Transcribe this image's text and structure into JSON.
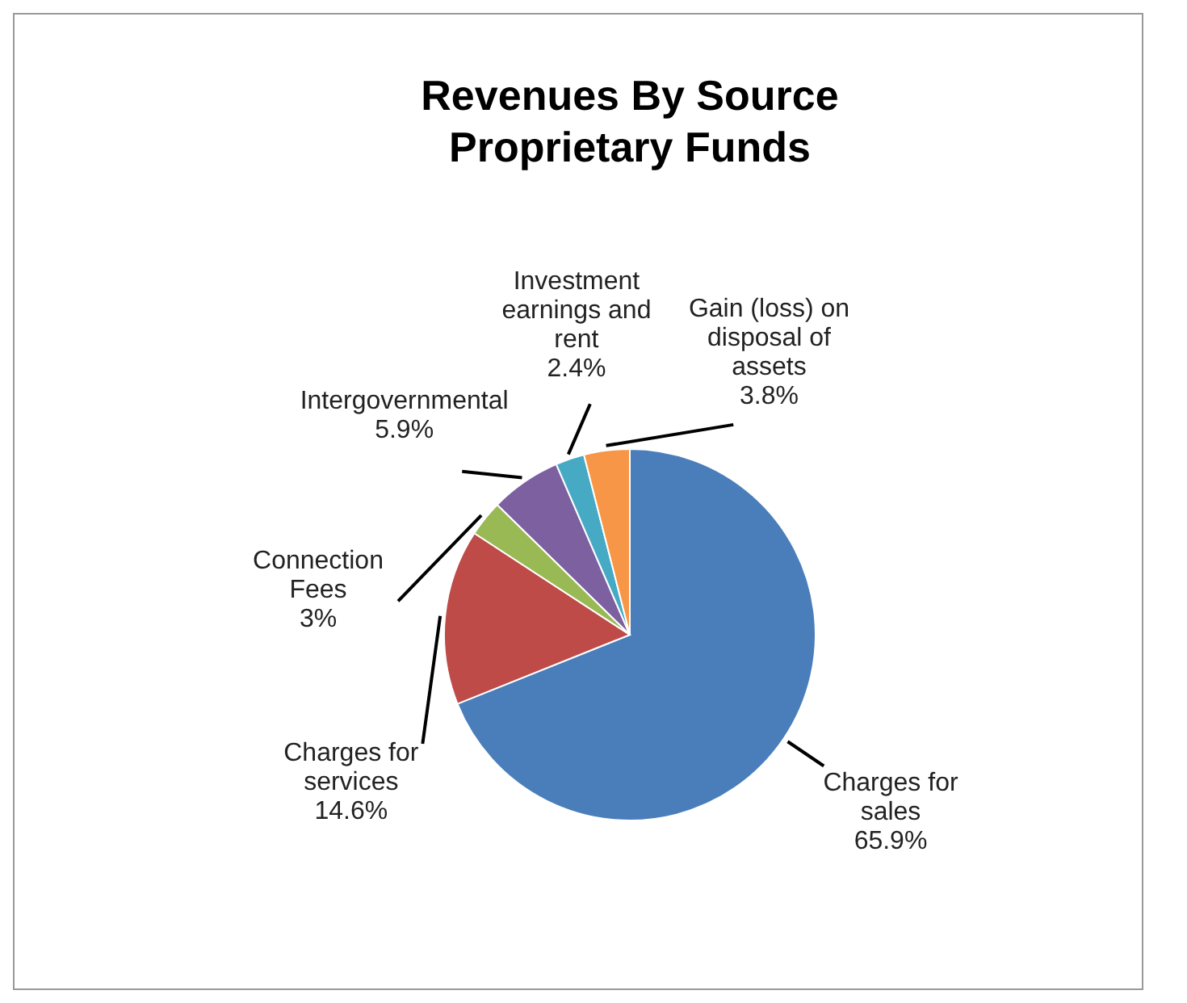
{
  "chart_data": {
    "type": "pie",
    "title": "Revenues By Source\nProprietary Funds",
    "categories": [
      "Charges for sales",
      "Charges for services",
      "Connection Fees",
      "Intergovernmental",
      "Investment earnings and rent",
      "Gain (loss) on disposal of assets"
    ],
    "values": [
      65.9,
      14.6,
      3,
      5.9,
      2.4,
      3.8
    ],
    "value_labels": [
      "65.9%",
      "14.6%",
      "3%",
      "5.9%",
      "2.4%",
      "3.8%"
    ],
    "colors": [
      "#4a7ebb",
      "#be4b48",
      "#98b954",
      "#7d60a0",
      "#46aac5",
      "#f79646"
    ]
  }
}
